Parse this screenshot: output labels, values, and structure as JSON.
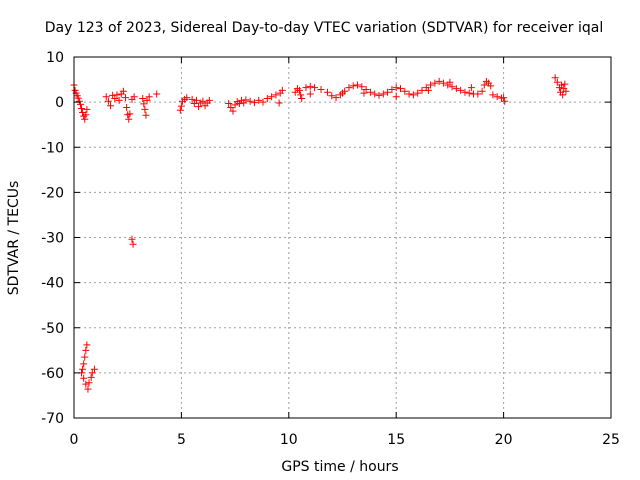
{
  "chart_data": {
    "type": "scatter",
    "title": "Day 123 of 2023, Sidereal Day-to-day VTEC variation (SDTVAR) for receiver iqal",
    "xlabel": "GPS time / hours",
    "ylabel": "SDTVAR / TECUs",
    "xlim": [
      0,
      25
    ],
    "ylim": [
      -70,
      10
    ],
    "xticks": [
      0,
      5,
      10,
      15,
      20,
      25
    ],
    "yticks": [
      10,
      0,
      -10,
      -20,
      -30,
      -40,
      -50,
      -60,
      -70
    ],
    "grid": true,
    "marker": "+",
    "color": "#ff0000",
    "series": [
      {
        "values": [
          [
            0.0,
            3.8
          ],
          [
            0.05,
            2.6
          ],
          [
            0.1,
            2.0
          ],
          [
            0.15,
            1.4
          ],
          [
            0.2,
            0.9
          ],
          [
            0.25,
            0.2
          ],
          [
            0.3,
            -0.5
          ],
          [
            0.35,
            -1.4
          ],
          [
            0.4,
            -2.3
          ],
          [
            0.45,
            -3.1
          ],
          [
            0.5,
            -3.8
          ],
          [
            0.55,
            -2.8
          ],
          [
            0.6,
            -1.6
          ],
          [
            0.35,
            -60.0
          ],
          [
            0.4,
            -59.2
          ],
          [
            0.45,
            -58.0
          ],
          [
            0.5,
            -56.5
          ],
          [
            0.55,
            -55.0
          ],
          [
            0.6,
            -53.8
          ],
          [
            0.45,
            -61.2
          ],
          [
            0.55,
            -62.5
          ],
          [
            0.65,
            -63.6
          ],
          [
            0.7,
            -62.2
          ],
          [
            0.8,
            -61.0
          ],
          [
            0.85,
            -60.0
          ],
          [
            0.95,
            -59.2
          ],
          [
            1.5,
            1.2
          ],
          [
            1.6,
            0.2
          ],
          [
            1.7,
            -0.8
          ],
          [
            1.8,
            1.5
          ],
          [
            1.9,
            0.8
          ],
          [
            2.0,
            1.6
          ],
          [
            2.1,
            0.4
          ],
          [
            2.2,
            1.8
          ],
          [
            2.3,
            2.4
          ],
          [
            2.4,
            1.0
          ],
          [
            2.45,
            -1.2
          ],
          [
            2.5,
            -2.8
          ],
          [
            2.55,
            -3.8
          ],
          [
            2.6,
            -2.6
          ],
          [
            2.7,
            0.6
          ],
          [
            2.8,
            1.2
          ],
          [
            2.7,
            -30.4
          ],
          [
            2.75,
            -31.5
          ],
          [
            3.2,
            0.8
          ],
          [
            3.25,
            -0.4
          ],
          [
            3.3,
            -1.6
          ],
          [
            3.35,
            -2.9
          ],
          [
            3.4,
            0.4
          ],
          [
            3.5,
            1.2
          ],
          [
            3.85,
            1.8
          ],
          [
            4.95,
            -1.8
          ],
          [
            5.0,
            -0.9
          ],
          [
            5.05,
            0.2
          ],
          [
            5.15,
            0.6
          ],
          [
            5.25,
            1.0
          ],
          [
            5.5,
            0.6
          ],
          [
            5.6,
            -0.3
          ],
          [
            5.7,
            0.4
          ],
          [
            5.8,
            -1.0
          ],
          [
            5.9,
            -0.2
          ],
          [
            6.0,
            0.2
          ],
          [
            6.1,
            -0.8
          ],
          [
            6.2,
            -0.2
          ],
          [
            6.3,
            0.4
          ],
          [
            7.2,
            -0.3
          ],
          [
            7.3,
            -1.2
          ],
          [
            7.4,
            -2.0
          ],
          [
            7.5,
            -0.6
          ],
          [
            7.6,
            0.1
          ],
          [
            7.7,
            -0.3
          ],
          [
            7.8,
            0.4
          ],
          [
            7.9,
            -0.2
          ],
          [
            8.0,
            0.5
          ],
          [
            8.2,
            0.2
          ],
          [
            8.4,
            -0.1
          ],
          [
            8.6,
            0.4
          ],
          [
            8.8,
            0.0
          ],
          [
            9.0,
            0.8
          ],
          [
            9.2,
            1.2
          ],
          [
            9.4,
            1.6
          ],
          [
            9.6,
            2.0
          ],
          [
            9.7,
            2.6
          ],
          [
            9.55,
            -0.2
          ],
          [
            10.3,
            2.2
          ],
          [
            10.4,
            3.0
          ],
          [
            10.5,
            2.6
          ],
          [
            10.55,
            1.6
          ],
          [
            10.6,
            0.8
          ],
          [
            10.8,
            3.2
          ],
          [
            11.0,
            3.5
          ],
          [
            11.2,
            3.2
          ],
          [
            11.5,
            2.8
          ],
          [
            11.8,
            2.2
          ],
          [
            12.0,
            1.4
          ],
          [
            12.2,
            1.0
          ],
          [
            12.4,
            1.6
          ],
          [
            12.6,
            2.4
          ],
          [
            12.8,
            3.2
          ],
          [
            13.0,
            3.6
          ],
          [
            13.2,
            3.8
          ],
          [
            13.4,
            3.4
          ],
          [
            13.6,
            2.8
          ],
          [
            13.8,
            2.2
          ],
          [
            14.0,
            1.8
          ],
          [
            14.2,
            1.5
          ],
          [
            14.4,
            1.8
          ],
          [
            14.6,
            2.2
          ],
          [
            14.8,
            2.8
          ],
          [
            15.0,
            3.2
          ],
          [
            15.2,
            3.0
          ],
          [
            15.4,
            2.4
          ],
          [
            15.6,
            1.8
          ],
          [
            15.8,
            1.6
          ],
          [
            16.0,
            2.0
          ],
          [
            16.2,
            2.6
          ],
          [
            16.4,
            3.2
          ],
          [
            16.6,
            3.8
          ],
          [
            16.8,
            4.2
          ],
          [
            17.0,
            4.6
          ],
          [
            17.2,
            4.2
          ],
          [
            17.4,
            3.8
          ],
          [
            17.6,
            3.4
          ],
          [
            17.8,
            3.0
          ],
          [
            18.0,
            2.6
          ],
          [
            18.2,
            2.2
          ],
          [
            18.4,
            2.0
          ],
          [
            18.6,
            1.8
          ],
          [
            18.8,
            1.8
          ],
          [
            19.0,
            2.4
          ],
          [
            19.1,
            3.8
          ],
          [
            19.2,
            4.6
          ],
          [
            19.3,
            4.2
          ],
          [
            19.4,
            3.6
          ],
          [
            19.5,
            1.6
          ],
          [
            19.7,
            1.2
          ],
          [
            19.9,
            0.9
          ],
          [
            20.0,
            1.0
          ],
          [
            20.05,
            0.2
          ],
          [
            11.0,
            1.8
          ],
          [
            12.5,
            2.0
          ],
          [
            13.5,
            2.0
          ],
          [
            15.0,
            1.2
          ],
          [
            16.5,
            2.6
          ],
          [
            17.5,
            4.4
          ],
          [
            18.5,
            3.2
          ],
          [
            22.4,
            5.4
          ],
          [
            22.5,
            4.4
          ],
          [
            22.6,
            3.2
          ],
          [
            22.65,
            2.2
          ],
          [
            22.7,
            3.8
          ],
          [
            22.75,
            1.6
          ],
          [
            22.8,
            3.0
          ],
          [
            22.85,
            4.0
          ],
          [
            22.9,
            2.4
          ]
        ]
      }
    ]
  }
}
